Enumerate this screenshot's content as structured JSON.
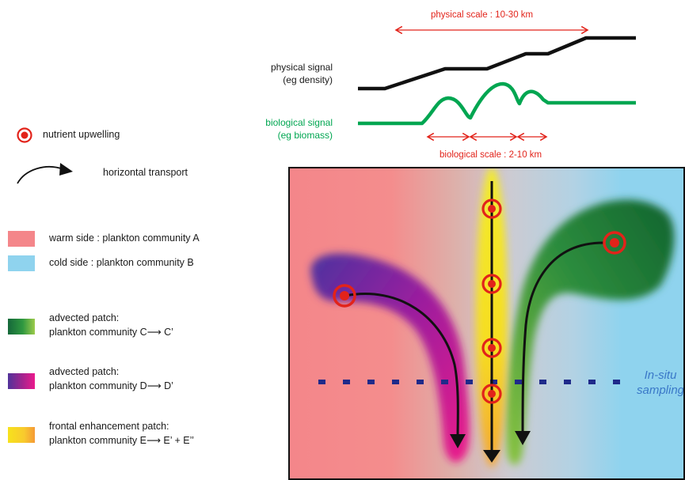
{
  "legend": {
    "upwelling_label": "nutrient upwelling",
    "transport_label": "horizontal transport",
    "warm_label": "warm side : plankton community A",
    "cold_label": "cold side : plankton community B",
    "green_patch": {
      "line1": "advected patch:",
      "line2_prefix": "plankton community C",
      "line2_suffix": " C’"
    },
    "purple_patch": {
      "line1": "advected patch:",
      "line2_prefix": "plankton community D",
      "line2_suffix": " D’"
    },
    "yellow_patch": {
      "line1": "frontal enhancement patch:",
      "line2_prefix": "plankton community E",
      "line2_suffix": " E’ + E’’"
    },
    "arrow_glyph": "⟶"
  },
  "signals": {
    "physical_scale": "physical scale : 10-30 km",
    "physical_label_1": "physical signal",
    "physical_label_2": "(eg density)",
    "biological_label_1": "biological signal",
    "biological_label_2": "(eg biomass)",
    "biological_scale": "biological scale : 2-10 km"
  },
  "map": {
    "sampling_label_1": "In-situ",
    "sampling_label_2": "sampling"
  },
  "colors": {
    "warm": "#f4868a",
    "cold": "#8fd3ee",
    "red": "#e2231a",
    "green_signal": "#00a651",
    "sampling_blue": "#1f2a8a",
    "sampling_text": "#3a78c8"
  }
}
